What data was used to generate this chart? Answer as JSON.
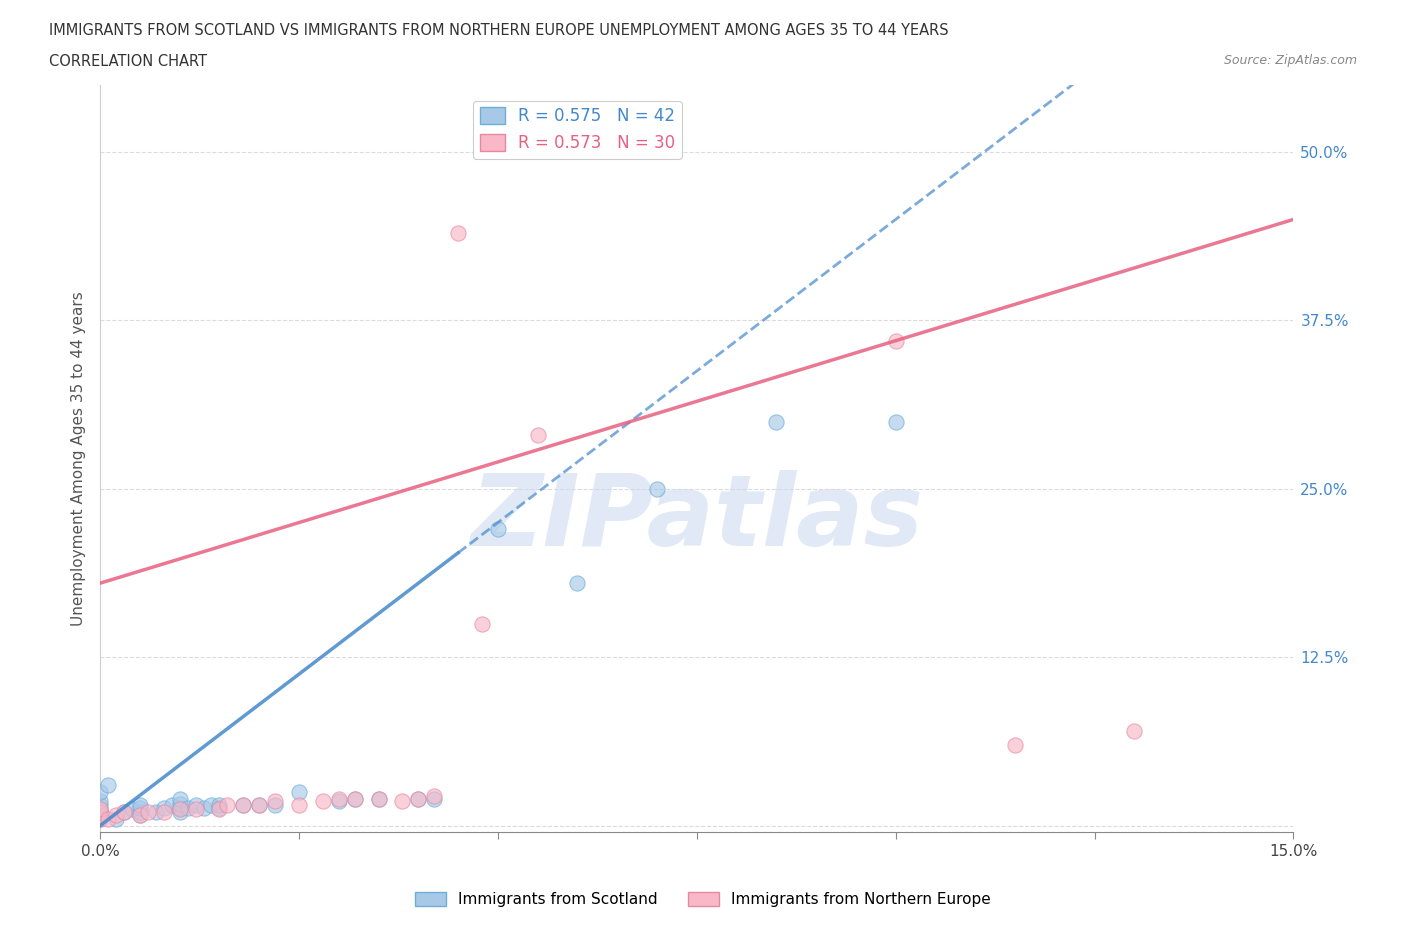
{
  "title_line1": "IMMIGRANTS FROM SCOTLAND VS IMMIGRANTS FROM NORTHERN EUROPE UNEMPLOYMENT AMONG AGES 35 TO 44 YEARS",
  "title_line2": "CORRELATION CHART",
  "source_text": "Source: ZipAtlas.com",
  "ylabel": "Unemployment Among Ages 35 to 44 years",
  "xlim": [
    0.0,
    0.15
  ],
  "ylim": [
    -0.005,
    0.55
  ],
  "scotland_color": "#a8c8e8",
  "scotland_edge_color": "#6baed6",
  "scotland_line_color": "#4488cc",
  "northern_europe_color": "#f8b8c8",
  "northern_europe_edge_color": "#e888a0",
  "northern_europe_line_color": "#e86080",
  "scotland_R": 0.575,
  "scotland_N": 42,
  "northern_europe_R": 0.573,
  "northern_europe_N": 30,
  "watermark_text": "ZIPatlas",
  "background_color": "#ffffff",
  "grid_color": "#cccccc",
  "scotland_x": [
    0.0,
    0.0,
    0.0,
    0.0,
    0.0,
    0.0,
    0.0,
    0.001,
    0.002,
    0.003,
    0.004,
    0.005,
    0.005,
    0.005,
    0.005,
    0.007,
    0.008,
    0.009,
    0.01,
    0.01,
    0.01,
    0.01,
    0.011,
    0.012,
    0.013,
    0.014,
    0.015,
    0.015,
    0.018,
    0.02,
    0.022,
    0.025,
    0.03,
    0.032,
    0.035,
    0.04,
    0.042,
    0.05,
    0.06,
    0.07,
    0.085,
    0.1
  ],
  "scotland_y": [
    0.005,
    0.008,
    0.01,
    0.012,
    0.015,
    0.018,
    0.025,
    0.03,
    0.005,
    0.01,
    0.012,
    0.008,
    0.01,
    0.013,
    0.015,
    0.01,
    0.013,
    0.015,
    0.01,
    0.013,
    0.016,
    0.02,
    0.013,
    0.015,
    0.013,
    0.015,
    0.013,
    0.015,
    0.015,
    0.015,
    0.015,
    0.025,
    0.018,
    0.02,
    0.02,
    0.02,
    0.02,
    0.22,
    0.18,
    0.25,
    0.3,
    0.3
  ],
  "ne_x": [
    0.0,
    0.0,
    0.0,
    0.001,
    0.002,
    0.003,
    0.005,
    0.006,
    0.008,
    0.01,
    0.012,
    0.015,
    0.016,
    0.018,
    0.02,
    0.022,
    0.025,
    0.028,
    0.03,
    0.032,
    0.035,
    0.038,
    0.04,
    0.042,
    0.045,
    0.048,
    0.055,
    0.1,
    0.115,
    0.13
  ],
  "ne_y": [
    0.005,
    0.01,
    0.012,
    0.005,
    0.008,
    0.01,
    0.008,
    0.01,
    0.01,
    0.012,
    0.012,
    0.012,
    0.015,
    0.015,
    0.015,
    0.018,
    0.015,
    0.018,
    0.02,
    0.02,
    0.02,
    0.018,
    0.02,
    0.022,
    0.44,
    0.15,
    0.29,
    0.36,
    0.06,
    0.07
  ]
}
